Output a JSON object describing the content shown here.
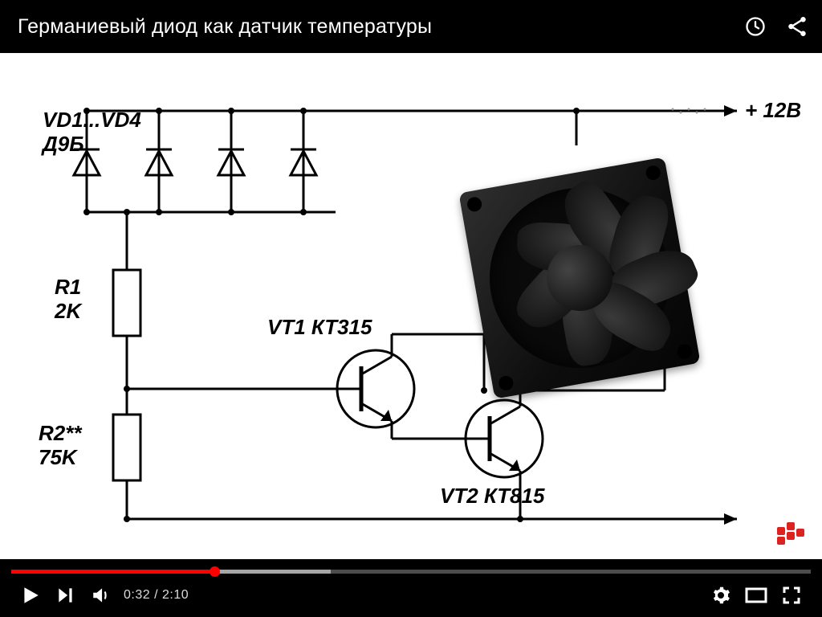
{
  "header": {
    "title": "Германиевый диод как датчик температуры"
  },
  "player": {
    "current_time": "0:32",
    "duration": "2:10",
    "progress": {
      "played_pct": 25.4,
      "loaded_pct": 40,
      "bar_color": "#ff0000",
      "loaded_color": "rgba(255,255,255,0.5)",
      "bg_color": "rgba(255,255,255,0.3)"
    },
    "accent_color": "#ff0000"
  },
  "circuit": {
    "background_color": "#ffffff",
    "wire_color": "#000000",
    "wire_width": 3,
    "label_fontsize": 24,
    "label_fontweight": "bold",
    "labels": {
      "diode_array": {
        "line1": "VD1...VD4",
        "line2": "Д9Б"
      },
      "r1": {
        "name": "R1",
        "value": "2K"
      },
      "r2": {
        "name": "R2**",
        "value": "75K"
      },
      "vt1": "VT1 КТ315",
      "vt2": "VT2 КТ815",
      "supply": "+ 12В",
      "supply_color": "#ff0000"
    },
    "diode_count": 4
  },
  "fan": {
    "blades": 7,
    "frame_color": "#1a1a1a",
    "blade_color": "#1a1a1a"
  }
}
